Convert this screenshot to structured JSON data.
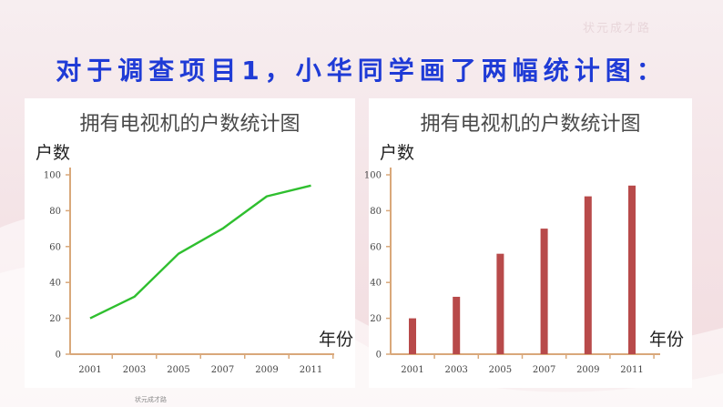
{
  "slide": {
    "title": "对于调查项目1，小华同学画了两幅统计图：",
    "watermark_top": "状元成才路",
    "watermark_bottom": "状元成才路"
  },
  "chart_data": [
    {
      "type": "line",
      "title": "拥有电视机的户数统计图",
      "ylabel": "户数",
      "xlabel": "年份",
      "categories": [
        "2001",
        "2003",
        "2005",
        "2007",
        "2009",
        "2011"
      ],
      "values": [
        20,
        32,
        56,
        70,
        88,
        94
      ],
      "yticks": [
        0,
        20,
        40,
        60,
        80,
        100
      ],
      "ylim": [
        0,
        100
      ],
      "color": "#2fbf2f",
      "grid": false
    },
    {
      "type": "bar",
      "title": "拥有电视机的户数统计图",
      "ylabel": "户数",
      "xlabel": "年份",
      "categories": [
        "2001",
        "2003",
        "2005",
        "2007",
        "2009",
        "2011"
      ],
      "values": [
        20,
        32,
        56,
        70,
        88,
        94
      ],
      "yticks": [
        0,
        20,
        40,
        60,
        80,
        100
      ],
      "ylim": [
        0,
        100
      ],
      "color": "#b84a4a",
      "grid": false
    }
  ]
}
